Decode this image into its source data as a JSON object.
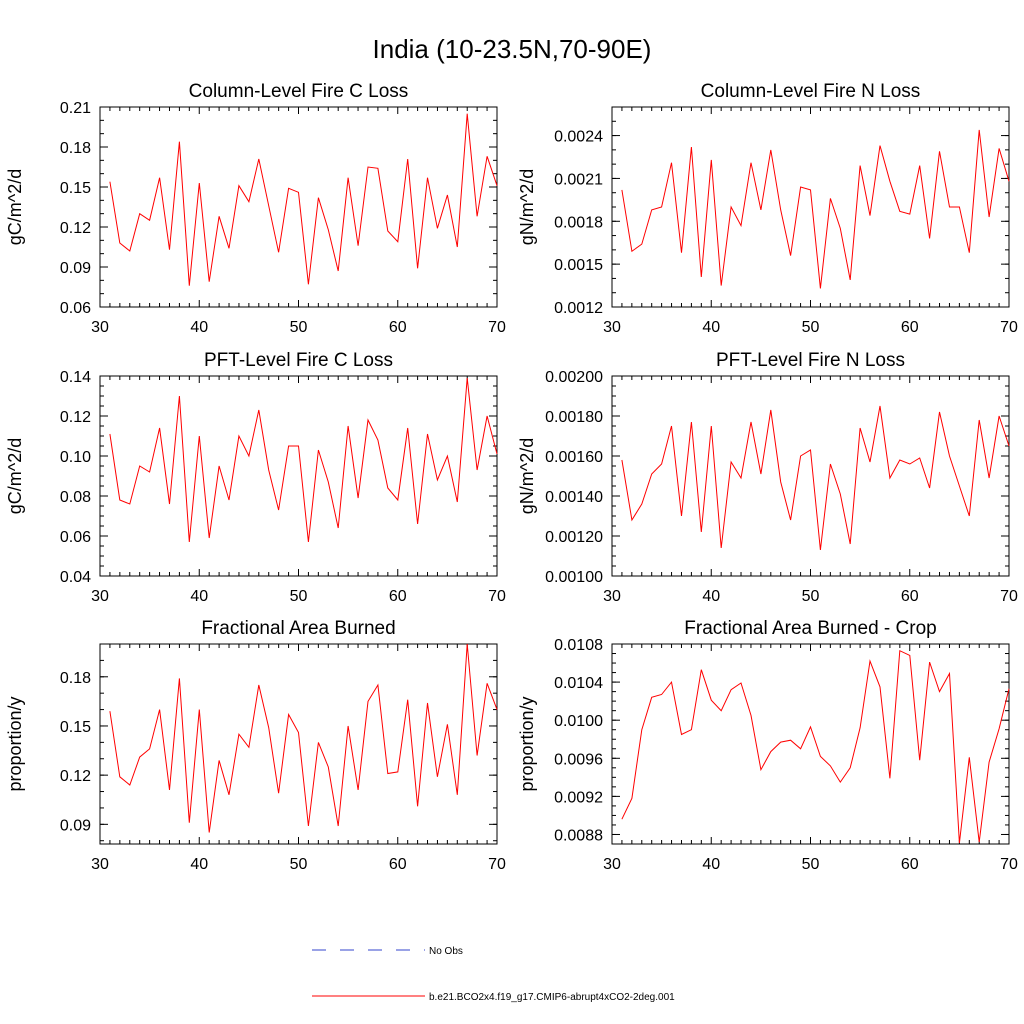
{
  "title": "India (10-23.5N,70-90E)",
  "legend": {
    "items": [
      {
        "label": "No Obs",
        "color": "#3344cc",
        "style": "dashed"
      },
      {
        "label": "b.e21.BCO2x4.f19_g17.CMIP6-abrupt4xCO2-2deg.001",
        "color": "#ff0000",
        "style": "solid"
      }
    ]
  },
  "chart_data": [
    {
      "type": "line",
      "title": "Column-Level Fire C Loss",
      "ylabel": "gC/m^2/d",
      "xlim": [
        30,
        70
      ],
      "ylim": [
        0.06,
        0.21
      ],
      "xticks": [
        "30",
        "40",
        "50",
        "60",
        "70"
      ],
      "yticks": [
        "0.06",
        "0.09",
        "0.12",
        "0.15",
        "0.18",
        "0.21"
      ],
      "ytick_values": [
        0.06,
        0.09,
        0.12,
        0.15,
        0.18,
        0.21
      ],
      "minor_y_step": 0.01,
      "x_start": 31,
      "series": [
        {
          "name": "b.e21.BCO2x4.f19_g17.CMIP6-abrupt4xCO2-2deg.001",
          "color": "#ff0000",
          "values": [
            0.154,
            0.108,
            0.102,
            0.13,
            0.125,
            0.157,
            0.103,
            0.184,
            0.076,
            0.153,
            0.079,
            0.128,
            0.104,
            0.151,
            0.139,
            0.171,
            0.136,
            0.101,
            0.149,
            0.146,
            0.077,
            0.142,
            0.118,
            0.087,
            0.157,
            0.106,
            0.165,
            0.164,
            0.117,
            0.109,
            0.171,
            0.089,
            0.157,
            0.119,
            0.144,
            0.105,
            0.205,
            0.128,
            0.173,
            0.151
          ]
        }
      ]
    },
    {
      "type": "line",
      "title": "Column-Level Fire N Loss",
      "ylabel": "gN/m^2/d",
      "xlim": [
        30,
        70
      ],
      "ylim": [
        0.0012,
        0.0026
      ],
      "xticks": [
        "30",
        "40",
        "50",
        "60",
        "70"
      ],
      "yticks": [
        "0.0012",
        "0.0015",
        "0.0018",
        "0.0021",
        "0.0024"
      ],
      "ytick_values": [
        0.0012,
        0.0015,
        0.0018,
        0.0021,
        0.0024
      ],
      "minor_y_step": 0.0001,
      "x_start": 31,
      "series": [
        {
          "name": "b.e21.BCO2x4.f19_g17.CMIP6-abrupt4xCO2-2deg.001",
          "color": "#ff0000",
          "values": [
            0.00202,
            0.00159,
            0.00164,
            0.00188,
            0.0019,
            0.00221,
            0.00158,
            0.00232,
            0.00141,
            0.00223,
            0.00135,
            0.0019,
            0.00177,
            0.00221,
            0.00188,
            0.0023,
            0.00188,
            0.00156,
            0.00204,
            0.00202,
            0.00133,
            0.00196,
            0.00175,
            0.00139,
            0.00219,
            0.00184,
            0.00233,
            0.00208,
            0.00187,
            0.00185,
            0.00219,
            0.00168,
            0.00229,
            0.0019,
            0.0019,
            0.00158,
            0.00244,
            0.00183,
            0.00231,
            0.00208
          ]
        }
      ]
    },
    {
      "type": "line",
      "title": "PFT-Level Fire C Loss",
      "ylabel": "gC/m^2/d",
      "xlim": [
        30,
        70
      ],
      "ylim": [
        0.04,
        0.14
      ],
      "xticks": [
        "30",
        "40",
        "50",
        "60",
        "70"
      ],
      "yticks": [
        "0.04",
        "0.06",
        "0.08",
        "0.10",
        "0.12",
        "0.14"
      ],
      "ytick_values": [
        0.04,
        0.06,
        0.08,
        0.1,
        0.12,
        0.14
      ],
      "minor_y_step": 0.005,
      "x_start": 31,
      "series": [
        {
          "name": "b.e21.BCO2x4.f19_g17.CMIP6-abrupt4xCO2-2deg.001",
          "color": "#ff0000",
          "values": [
            0.111,
            0.078,
            0.076,
            0.095,
            0.092,
            0.114,
            0.076,
            0.13,
            0.057,
            0.11,
            0.059,
            0.095,
            0.078,
            0.11,
            0.1,
            0.123,
            0.093,
            0.073,
            0.105,
            0.105,
            0.057,
            0.103,
            0.087,
            0.064,
            0.115,
            0.079,
            0.118,
            0.108,
            0.084,
            0.078,
            0.114,
            0.066,
            0.111,
            0.088,
            0.1,
            0.077,
            0.139,
            0.093,
            0.12,
            0.101
          ]
        }
      ]
    },
    {
      "type": "line",
      "title": "PFT-Level Fire N Loss",
      "ylabel": "gN/m^2/d",
      "xlim": [
        30,
        70
      ],
      "ylim": [
        0.001,
        0.002
      ],
      "xticks": [
        "30",
        "40",
        "50",
        "60",
        "70"
      ],
      "yticks": [
        "0.00100",
        "0.00120",
        "0.00140",
        "0.00160",
        "0.00180",
        "0.00200"
      ],
      "ytick_values": [
        0.001,
        0.0012,
        0.0014,
        0.0016,
        0.0018,
        0.002
      ],
      "minor_y_step": 5e-05,
      "x_start": 31,
      "series": [
        {
          "name": "b.e21.BCO2x4.f19_g17.CMIP6-abrupt4xCO2-2deg.001",
          "color": "#ff0000",
          "values": [
            0.00158,
            0.00128,
            0.00136,
            0.00151,
            0.00156,
            0.00175,
            0.0013,
            0.00177,
            0.00122,
            0.00175,
            0.00114,
            0.00157,
            0.00149,
            0.00177,
            0.00151,
            0.00183,
            0.00147,
            0.00128,
            0.0016,
            0.00163,
            0.00113,
            0.00156,
            0.00141,
            0.00116,
            0.00174,
            0.00157,
            0.00185,
            0.00149,
            0.00158,
            0.00156,
            0.00159,
            0.00144,
            0.00182,
            0.0016,
            0.00145,
            0.0013,
            0.00178,
            0.00149,
            0.0018,
            0.00165
          ]
        }
      ]
    },
    {
      "type": "line",
      "title": "Fractional Area Burned",
      "ylabel": "proportion/y",
      "xlim": [
        30,
        70
      ],
      "ylim": [
        0.078,
        0.2
      ],
      "xticks": [
        "30",
        "40",
        "50",
        "60",
        "70"
      ],
      "yticks": [
        "0.09",
        "0.12",
        "0.15",
        "0.18"
      ],
      "ytick_values": [
        0.09,
        0.12,
        0.15,
        0.18
      ],
      "minor_y_step": 0.01,
      "x_start": 31,
      "series": [
        {
          "name": "b.e21.BCO2x4.f19_g17.CMIP6-abrupt4xCO2-2deg.001",
          "color": "#ff0000",
          "values": [
            0.159,
            0.119,
            0.114,
            0.131,
            0.136,
            0.16,
            0.111,
            0.179,
            0.091,
            0.16,
            0.085,
            0.129,
            0.108,
            0.145,
            0.137,
            0.175,
            0.149,
            0.109,
            0.157,
            0.146,
            0.089,
            0.14,
            0.125,
            0.089,
            0.15,
            0.111,
            0.165,
            0.175,
            0.121,
            0.122,
            0.166,
            0.101,
            0.164,
            0.119,
            0.151,
            0.108,
            0.2,
            0.132,
            0.176,
            0.16
          ]
        }
      ]
    },
    {
      "type": "line",
      "title": "Fractional Area Burned - Crop",
      "ylabel": "proportion/y",
      "xlim": [
        30,
        70
      ],
      "ylim": [
        0.0087,
        0.0108
      ],
      "xticks": [
        "30",
        "40",
        "50",
        "60",
        "70"
      ],
      "yticks": [
        "0.0088",
        "0.0092",
        "0.0096",
        "0.0100",
        "0.0104",
        "0.0108"
      ],
      "ytick_values": [
        0.0088,
        0.0092,
        0.0096,
        0.01,
        0.0104,
        0.0108
      ],
      "minor_y_step": 0.0001,
      "x_start": 31,
      "series": [
        {
          "name": "b.e21.BCO2x4.f19_g17.CMIP6-abrupt4xCO2-2deg.001",
          "color": "#ff0000",
          "values": [
            0.00896,
            0.00918,
            0.0099,
            0.01024,
            0.01027,
            0.0104,
            0.00985,
            0.0099,
            0.01053,
            0.01021,
            0.0101,
            0.01032,
            0.01039,
            0.01005,
            0.00948,
            0.00967,
            0.00977,
            0.00979,
            0.0097,
            0.00993,
            0.00962,
            0.00952,
            0.00935,
            0.0095,
            0.00992,
            0.01062,
            0.01035,
            0.00939,
            0.01073,
            0.01068,
            0.00958,
            0.01061,
            0.0103,
            0.01049,
            0.00871,
            0.00961,
            0.00872,
            0.00956,
            0.00991,
            0.01033
          ]
        }
      ]
    }
  ]
}
